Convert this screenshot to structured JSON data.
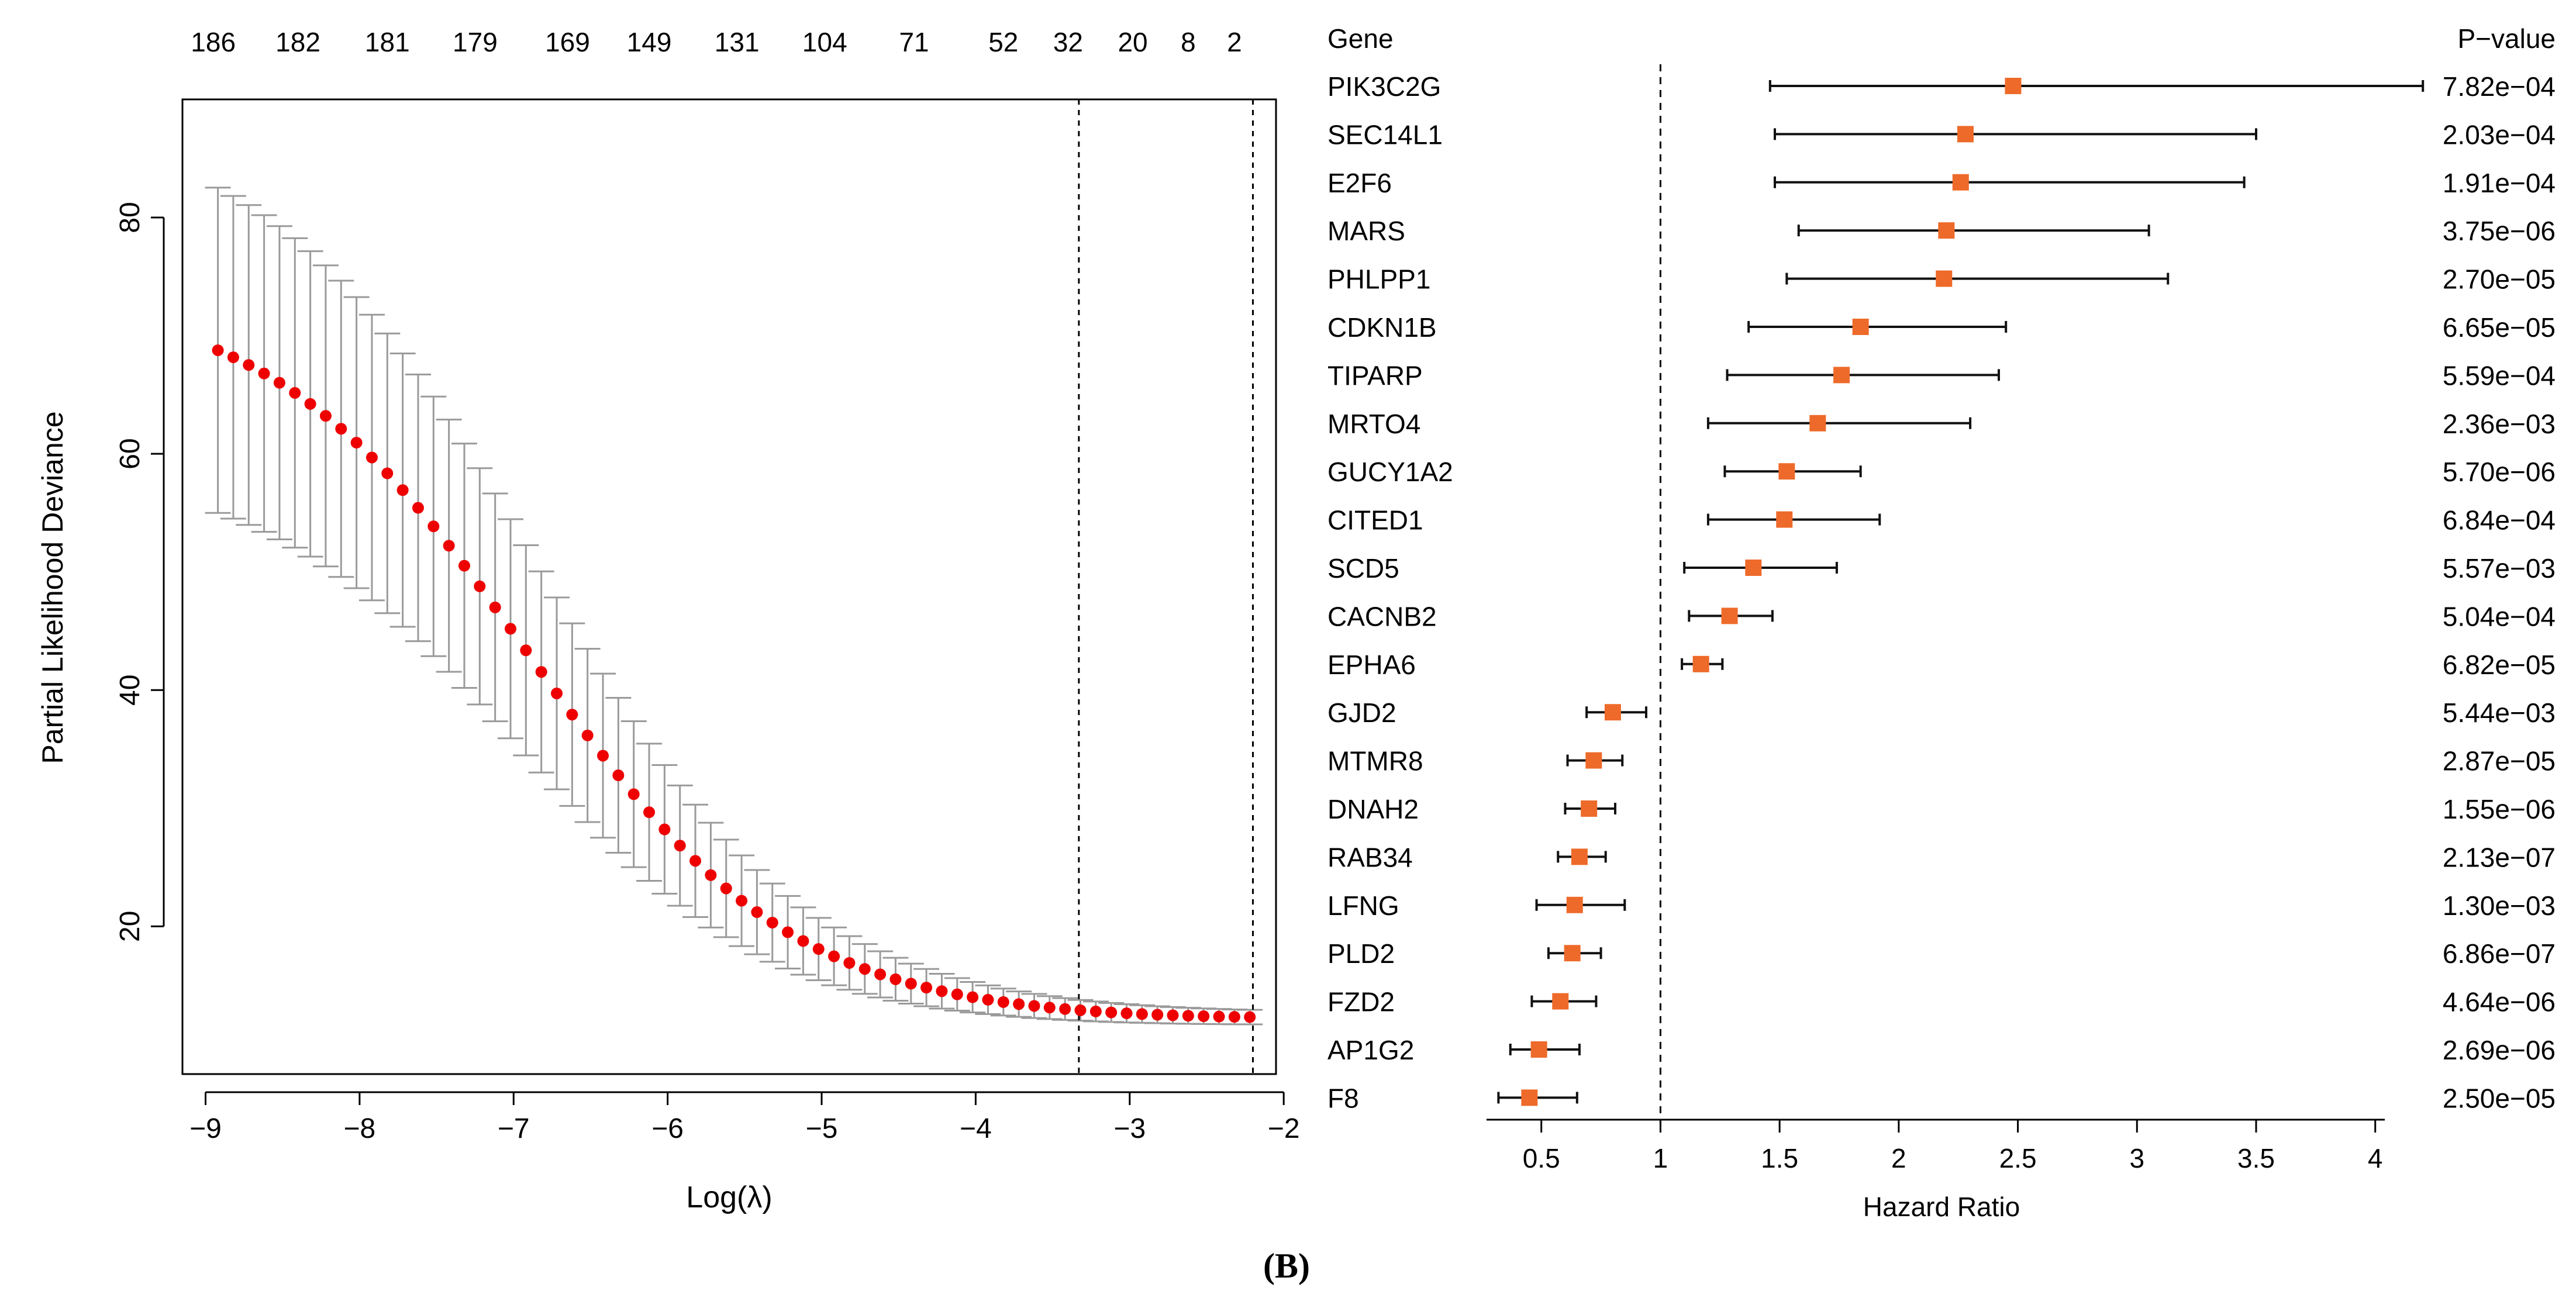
{
  "figure": {
    "panel_label": "(B)"
  },
  "chart_data": [
    {
      "type": "scatter",
      "variant": "cv-lasso-deviance-with-error-bars",
      "title": "",
      "xlabel": "Log(λ)",
      "ylabel": "Partial Likelihood Deviance",
      "xlim": [
        -9.15,
        -2.05
      ],
      "ylim": [
        7.5,
        90.0
      ],
      "xticks": [
        -9,
        -8,
        -7,
        -6,
        -5,
        -4,
        -3,
        -2
      ],
      "xtick_labels": [
        "−9",
        "−8",
        "−7",
        "−6",
        "−5",
        "−4",
        "−3",
        "−2"
      ],
      "yticks": [
        20,
        40,
        60,
        80
      ],
      "ytick_labels": [
        "20",
        "40",
        "60",
        "80"
      ],
      "top_axis": {
        "x": [
          -8.95,
          -8.4,
          -7.82,
          -7.25,
          -6.65,
          -6.12,
          -5.55,
          -4.98,
          -4.4,
          -3.82,
          -3.4,
          -2.98,
          -2.62,
          -2.32
        ],
        "labels": [
          "186",
          "182",
          "181",
          "179",
          "169",
          "149",
          "131",
          "104",
          "71",
          "52",
          "32",
          "20",
          "8",
          "2"
        ]
      },
      "vlines": [
        -3.33,
        -2.2
      ],
      "point_color": "#ee0000",
      "errorbar_color": "#9a9a9a",
      "x_start": -8.92,
      "x_step": 0.1
    },
    {
      "type": "scatter",
      "variant": "forest-plot",
      "title": "",
      "xlabel": "Hazard Ratio",
      "xlim": [
        0.27,
        4.04
      ],
      "xticks": [
        0.5,
        1,
        1.5,
        2,
        2.5,
        3,
        3.5,
        4
      ],
      "xtick_labels": [
        "0.5",
        "1",
        "1.5",
        "2",
        "2.5",
        "3",
        "3.5",
        "4"
      ],
      "reference_line": 1,
      "col_gene_header": "Gene",
      "col_p_header": "P−value",
      "marker_color": "#ee6a2a",
      "line_color": "#111111",
      "rows": [
        {
          "gene": "PIK3C2G",
          "hr": 2.48,
          "lo": 1.46,
          "hi": 4.2,
          "p": "7.82e−04"
        },
        {
          "gene": "SEC14L1",
          "hr": 2.28,
          "lo": 1.48,
          "hi": 3.5,
          "p": "2.03e−04"
        },
        {
          "gene": "E2F6",
          "hr": 2.26,
          "lo": 1.48,
          "hi": 3.45,
          "p": "1.91e−04"
        },
        {
          "gene": "MARS",
          "hr": 2.2,
          "lo": 1.58,
          "hi": 3.05,
          "p": "3.75e−06"
        },
        {
          "gene": "PHLPP1",
          "hr": 2.19,
          "lo": 1.53,
          "hi": 3.13,
          "p": "2.70e−05"
        },
        {
          "gene": "CDKN1B",
          "hr": 1.84,
          "lo": 1.37,
          "hi": 2.45,
          "p": "6.65e−05"
        },
        {
          "gene": "TIPARP",
          "hr": 1.76,
          "lo": 1.28,
          "hi": 2.42,
          "p": "5.59e−04"
        },
        {
          "gene": "MRTO4",
          "hr": 1.66,
          "lo": 1.2,
          "hi": 2.3,
          "p": "2.36e−03"
        },
        {
          "gene": "GUCY1A2",
          "hr": 1.53,
          "lo": 1.27,
          "hi": 1.84,
          "p": "5.70e−06"
        },
        {
          "gene": "CITED1",
          "hr": 1.52,
          "lo": 1.2,
          "hi": 1.92,
          "p": "6.84e−04"
        },
        {
          "gene": "SCD5",
          "hr": 1.39,
          "lo": 1.1,
          "hi": 1.74,
          "p": "5.57e−03"
        },
        {
          "gene": "CACNB2",
          "hr": 1.29,
          "lo": 1.12,
          "hi": 1.47,
          "p": "5.04e−04"
        },
        {
          "gene": "EPHA6",
          "hr": 1.17,
          "lo": 1.09,
          "hi": 1.26,
          "p": "6.82e−05"
        },
        {
          "gene": "GJD2",
          "hr": 0.8,
          "lo": 0.69,
          "hi": 0.94,
          "p": "5.44e−03"
        },
        {
          "gene": "MTMR8",
          "hr": 0.72,
          "lo": 0.61,
          "hi": 0.84,
          "p": "2.87e−05"
        },
        {
          "gene": "DNAH2",
          "hr": 0.7,
          "lo": 0.6,
          "hi": 0.81,
          "p": "1.55e−06"
        },
        {
          "gene": "RAB34",
          "hr": 0.66,
          "lo": 0.57,
          "hi": 0.77,
          "p": "2.13e−07"
        },
        {
          "gene": "LFNG",
          "hr": 0.64,
          "lo": 0.48,
          "hi": 0.85,
          "p": "1.30e−03"
        },
        {
          "gene": "PLD2",
          "hr": 0.63,
          "lo": 0.53,
          "hi": 0.75,
          "p": "6.86e−07"
        },
        {
          "gene": "FZD2",
          "hr": 0.58,
          "lo": 0.46,
          "hi": 0.73,
          "p": "4.64e−06"
        },
        {
          "gene": "AP1G2",
          "hr": 0.49,
          "lo": 0.37,
          "hi": 0.66,
          "p": "2.69e−06"
        },
        {
          "gene": "F8",
          "hr": 0.45,
          "lo": 0.32,
          "hi": 0.65,
          "p": "2.50e−05"
        }
      ]
    }
  ]
}
